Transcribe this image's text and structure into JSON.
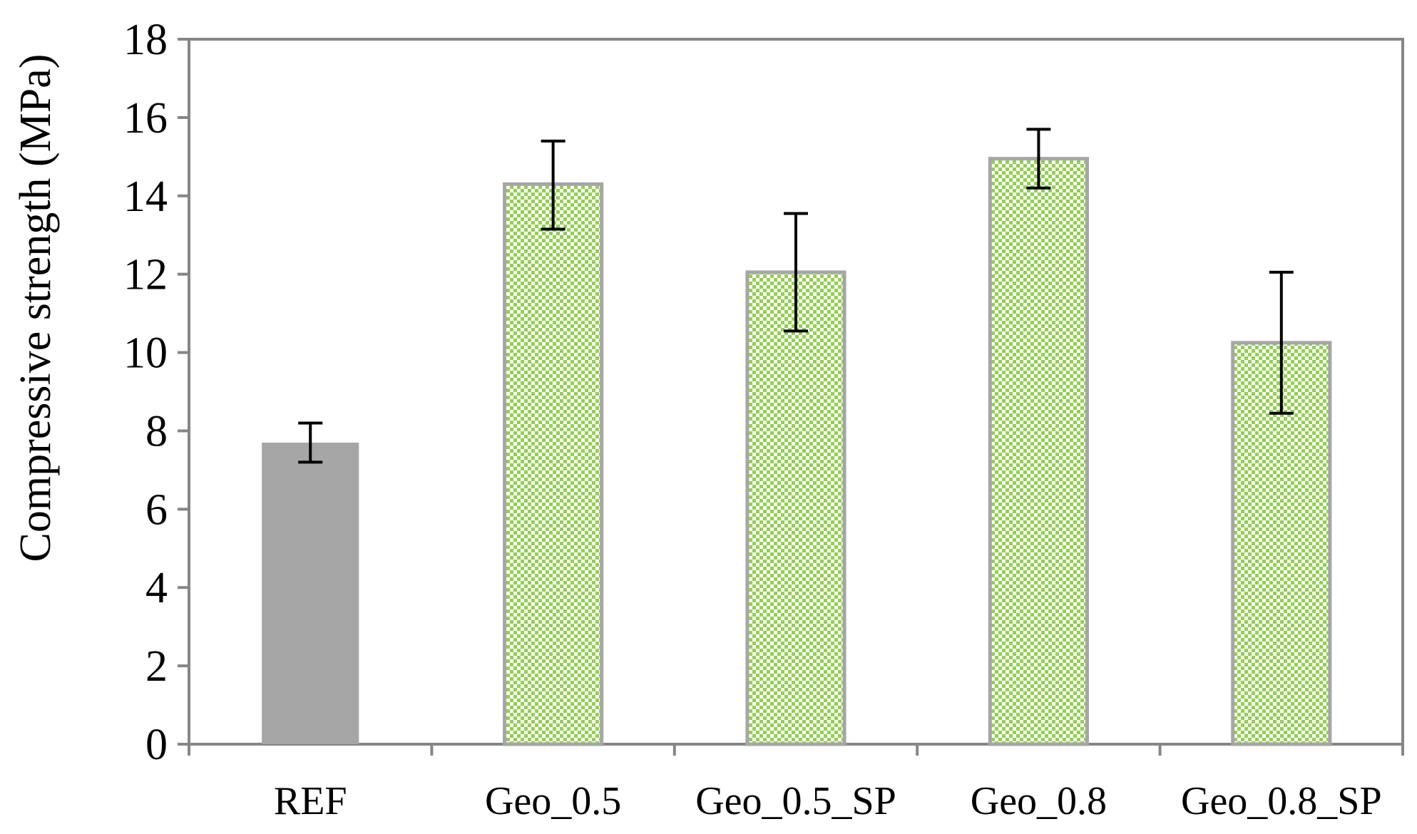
{
  "chart_data": {
    "type": "bar",
    "title": "",
    "xlabel": "",
    "ylabel": "Compressive strength (MPa)",
    "ylim": [
      0,
      18
    ],
    "yticks": [
      0,
      2,
      4,
      6,
      8,
      10,
      12,
      14,
      16,
      18
    ],
    "grid": false,
    "categories": [
      "REF",
      "Geo_0.5",
      "Geo_0.5_SP",
      "Geo_0.8",
      "Geo_0.8_SP"
    ],
    "values": [
      7.7,
      14.3,
      12.05,
      14.95,
      10.25
    ],
    "error_low": [
      7.2,
      13.15,
      10.55,
      14.2,
      8.45
    ],
    "error_high": [
      8.2,
      15.4,
      13.55,
      15.7,
      12.05
    ],
    "bar_styles": [
      "solid",
      "pattern",
      "pattern",
      "pattern",
      "pattern"
    ],
    "colors": {
      "solid_fill": "#a6a6a6",
      "pattern_green": "#92d050",
      "pattern_light": "#ffffff",
      "bar_border": "#a6a6a6",
      "axis": "#868686",
      "error_bar": "#000000"
    }
  }
}
